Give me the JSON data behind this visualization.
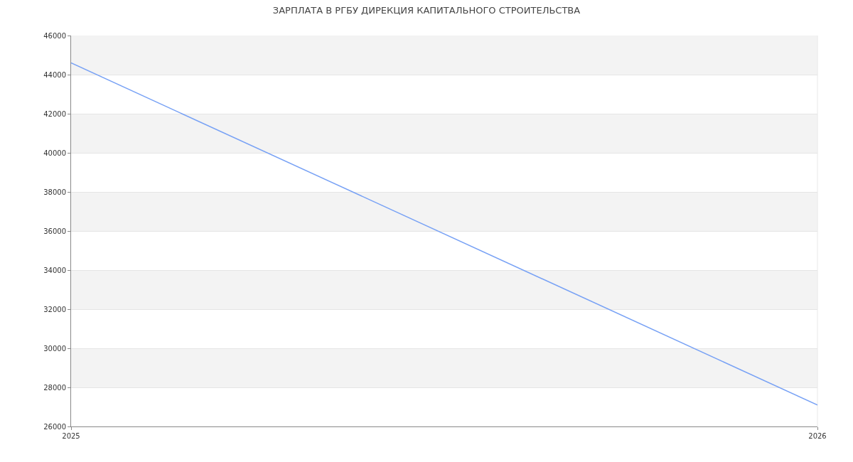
{
  "chart_data": {
    "type": "line",
    "title": "ЗАРПЛАТА В РГБУ ДИРЕКЦИЯ КАПИТАЛЬНОГО СТРОИТЕЛЬСТВА",
    "x": [
      2025,
      2026
    ],
    "series": [
      {
        "color": "#77a1f5",
        "values": [
          44600,
          27100
        ]
      }
    ],
    "xlim": [
      2025,
      2026
    ],
    "xticks": [
      2025,
      2026
    ],
    "ylim": [
      26000,
      46000
    ],
    "yticks": [
      26000,
      28000,
      30000,
      32000,
      34000,
      36000,
      38000,
      40000,
      42000,
      44000,
      46000
    ],
    "grid": "y",
    "marker": "none",
    "line_style": "solid"
  }
}
